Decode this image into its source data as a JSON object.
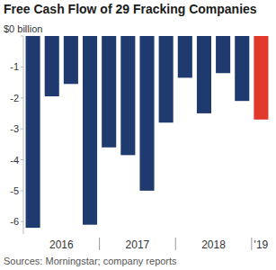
{
  "chart_data": {
    "type": "bar",
    "title": "Free Cash Flow of 29 Fracking Companies",
    "source": "Sources: Morningstar; company reports",
    "categories": [
      "2016",
      null,
      null,
      null,
      "2017",
      null,
      null,
      null,
      "2018",
      null,
      null,
      null,
      "'19"
    ],
    "values": [
      -6.2,
      -1.95,
      -1.55,
      -6.1,
      -3.6,
      -3.85,
      -5.0,
      -2.8,
      -1.35,
      -2.5,
      -1.2,
      -2.1,
      -2.7
    ],
    "colors": [
      "#1f3a6e",
      "#1f3a6e",
      "#1f3a6e",
      "#1f3a6e",
      "#1f3a6e",
      "#1f3a6e",
      "#1f3a6e",
      "#1f3a6e",
      "#1f3a6e",
      "#1f3a6e",
      "#1f3a6e",
      "#1f3a6e",
      "#e0392b"
    ],
    "ylim": [
      -6.4,
      0
    ],
    "yticks": [
      {
        "value": 0,
        "label": "$0 billion"
      },
      -1,
      -2,
      -3,
      -4,
      -5,
      -6
    ],
    "grid": false
  }
}
